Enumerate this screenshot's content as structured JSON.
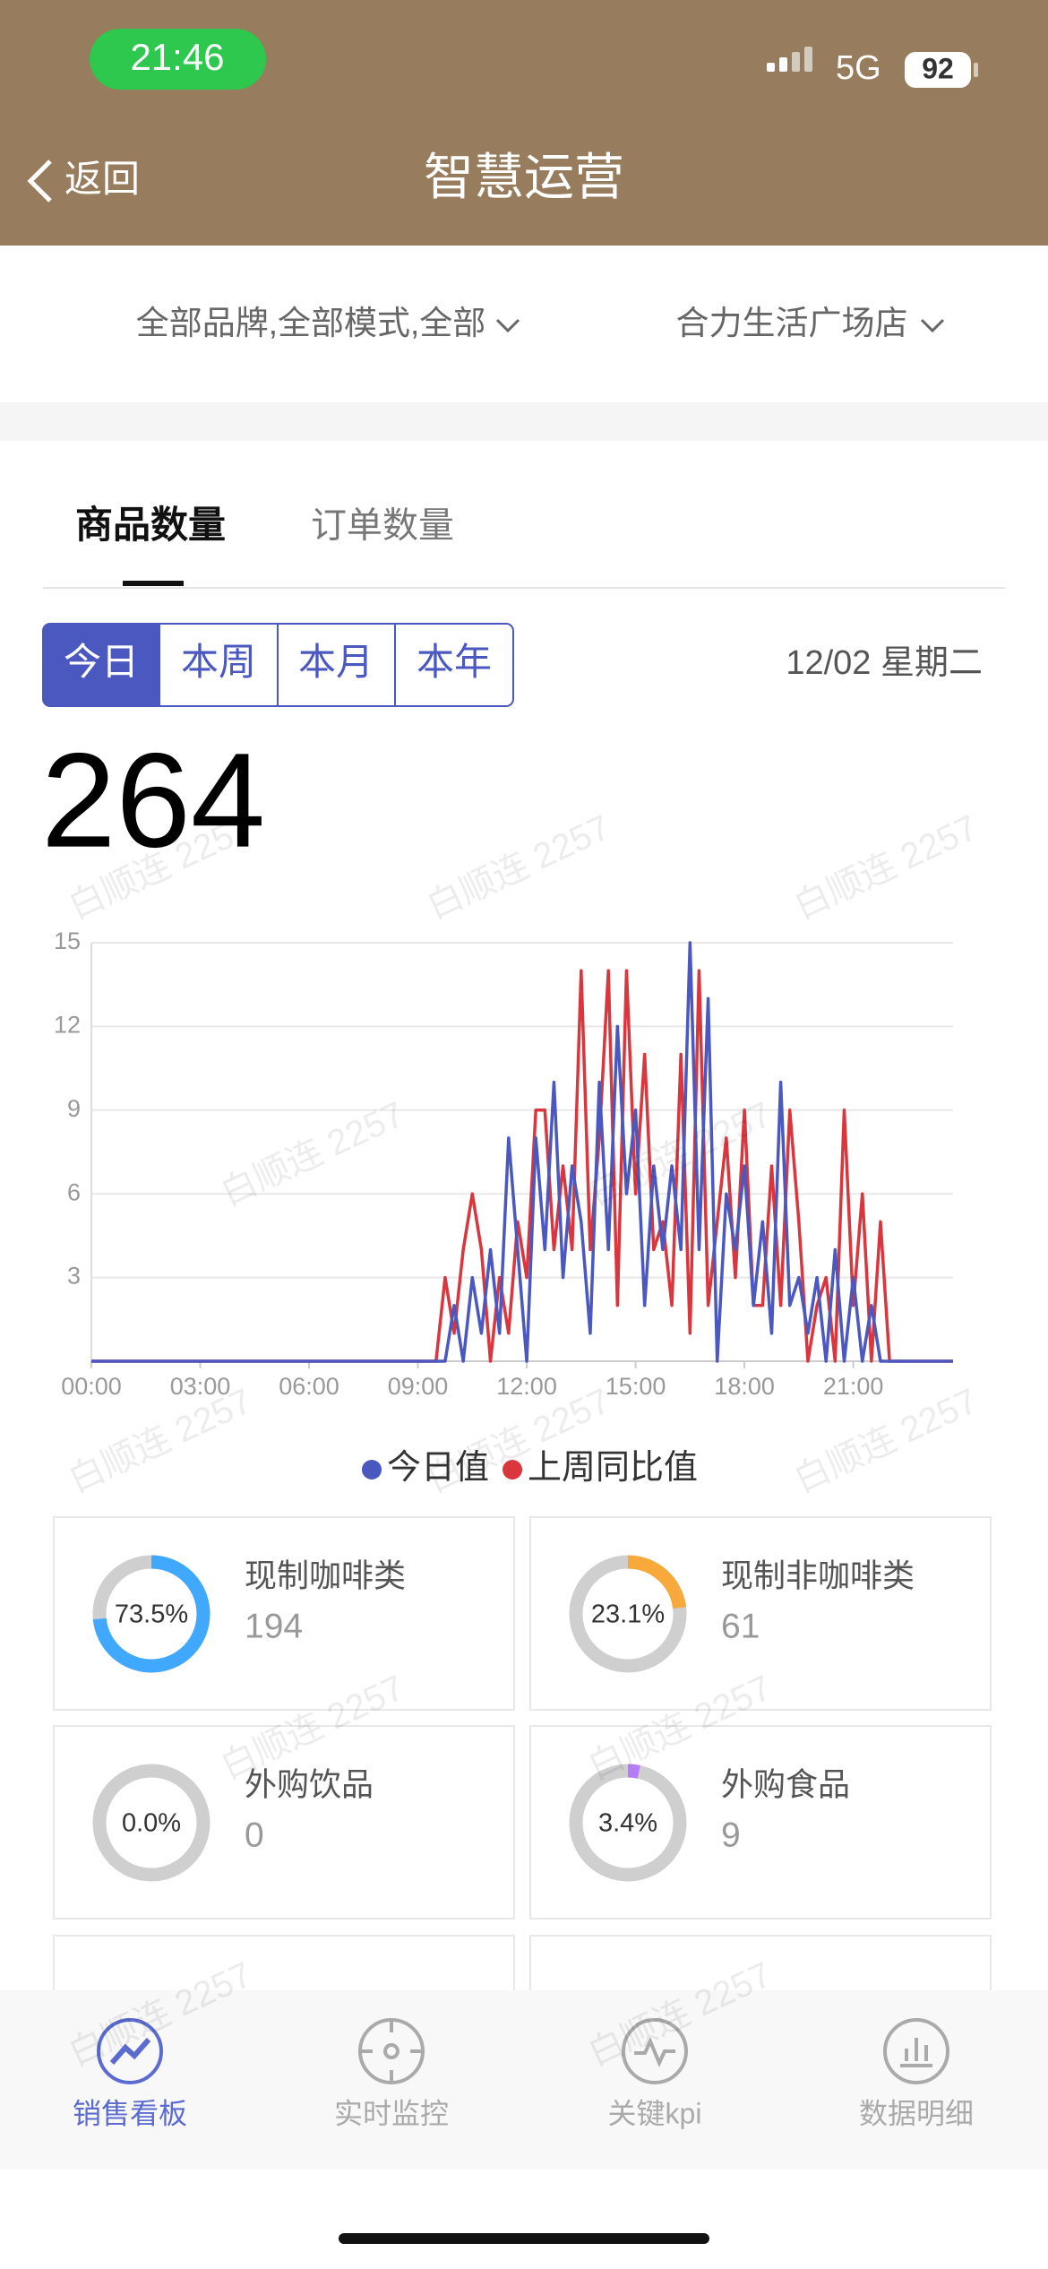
{
  "status_bar": {
    "time": "21:46",
    "network": "5G",
    "battery": "92"
  },
  "nav": {
    "back": "返回",
    "title": "智慧运营"
  },
  "filters": [
    "全部品牌,全部模式,全部",
    "合力生活广场店"
  ],
  "tabs": [
    "商品数量",
    "订单数量"
  ],
  "periods": [
    "今日",
    "本周",
    "本月",
    "本年"
  ],
  "date": "12/02 星期二",
  "total": 264,
  "chart_data": {
    "type": "line",
    "x": [
      0,
      0.25,
      0.5,
      0.75,
      1,
      1.25,
      1.5,
      1.75,
      2,
      2.25,
      2.5,
      2.75,
      3,
      3.25,
      3.5,
      3.75,
      4,
      4.25,
      4.5,
      4.75,
      5,
      5.25,
      5.5,
      5.75,
      6,
      6.25,
      6.5,
      6.75,
      7,
      7.25,
      7.5,
      7.75,
      8,
      8.25,
      8.5,
      8.75,
      9,
      9.25,
      9.5,
      9.75,
      10,
      10.25,
      10.5,
      10.75,
      11,
      11.25,
      11.5,
      11.75,
      12,
      12.25,
      12.5,
      12.75,
      13,
      13.25,
      13.5,
      13.75,
      14,
      14.25,
      14.5,
      14.75,
      15,
      15.25,
      15.5,
      15.75,
      16,
      16.25,
      16.5,
      16.75,
      17,
      17.25,
      17.5,
      17.75,
      18,
      18.25,
      18.5,
      18.75,
      19,
      19.25,
      19.5,
      19.75,
      20,
      20.25,
      20.5,
      20.75,
      21,
      21.25,
      21.5,
      21.75,
      22,
      22.25,
      22.5,
      22.75,
      23,
      23.25,
      23.5,
      23.75
    ],
    "series": [
      {
        "name": "今日值",
        "color": "#4a58c0",
        "values": [
          0,
          0,
          0,
          0,
          0,
          0,
          0,
          0,
          0,
          0,
          0,
          0,
          0,
          0,
          0,
          0,
          0,
          0,
          0,
          0,
          0,
          0,
          0,
          0,
          0,
          0,
          0,
          0,
          0,
          0,
          0,
          0,
          0,
          0,
          0,
          0,
          0,
          0,
          0,
          0,
          2,
          0,
          3,
          1,
          4,
          1,
          8,
          4,
          0,
          8,
          4,
          10,
          3,
          7,
          5,
          1,
          10,
          4,
          12,
          6,
          9,
          2,
          7,
          4,
          7,
          4,
          15,
          4,
          13,
          0,
          6,
          4,
          7,
          2,
          5,
          1,
          10,
          2,
          3,
          1,
          3,
          0,
          4,
          0,
          3,
          0,
          2,
          0,
          0,
          0,
          0,
          0,
          0,
          0,
          0,
          0
        ]
      },
      {
        "name": "上周同比值",
        "color": "#d9363e",
        "values": [
          0,
          0,
          0,
          0,
          0,
          0,
          0,
          0,
          0,
          0,
          0,
          0,
          0,
          0,
          0,
          0,
          0,
          0,
          0,
          0,
          0,
          0,
          0,
          0,
          0,
          0,
          0,
          0,
          0,
          0,
          0,
          0,
          0,
          0,
          0,
          0,
          0,
          0,
          0,
          3,
          1,
          4,
          6,
          4,
          0,
          3,
          1,
          5,
          3,
          9,
          9,
          4,
          7,
          4,
          14,
          4,
          8,
          14,
          2,
          14,
          6,
          11,
          4,
          5,
          2,
          11,
          1,
          14,
          2,
          5,
          8,
          3,
          9,
          2,
          2,
          7,
          2,
          9,
          5,
          0,
          2,
          3,
          0,
          9,
          2,
          6,
          0,
          5,
          0,
          0,
          0,
          0,
          0,
          0,
          0,
          0
        ]
      }
    ],
    "xlim": [
      0,
      23.75
    ],
    "xticks": [
      {
        "value": 0,
        "label": "00:00"
      },
      {
        "value": 3,
        "label": "03:00"
      },
      {
        "value": 6,
        "label": "06:00"
      },
      {
        "value": 9,
        "label": "09:00"
      },
      {
        "value": 12,
        "label": "12:00"
      },
      {
        "value": 15,
        "label": "15:00"
      },
      {
        "value": 18,
        "label": "18:00"
      },
      {
        "value": 21,
        "label": "21:00"
      }
    ],
    "ylim": [
      0,
      15
    ],
    "yticks": [
      3,
      6,
      9,
      12,
      15
    ],
    "grid": true,
    "legend": "bottom"
  },
  "cards": [
    {
      "name": "现制咖啡类",
      "percent": 73.5,
      "percent_label": "73.5%",
      "count": 194,
      "color": "#40a9ff"
    },
    {
      "name": "现制非咖啡类",
      "percent": 23.1,
      "percent_label": "23.1%",
      "count": 61,
      "color": "#f7a93b"
    },
    {
      "name": "外购饮品",
      "percent": 0,
      "percent_label": "0.0%",
      "count": 0,
      "color": "#9e9e9e"
    },
    {
      "name": "外购食品",
      "percent": 3.4,
      "percent_label": "3.4%",
      "count": 9,
      "color": "#b57cf5"
    }
  ],
  "bottom_nav": [
    "销售看板",
    "实时监控",
    "关键kpi",
    "数据明细"
  ],
  "watermark": "白顺连 2257"
}
